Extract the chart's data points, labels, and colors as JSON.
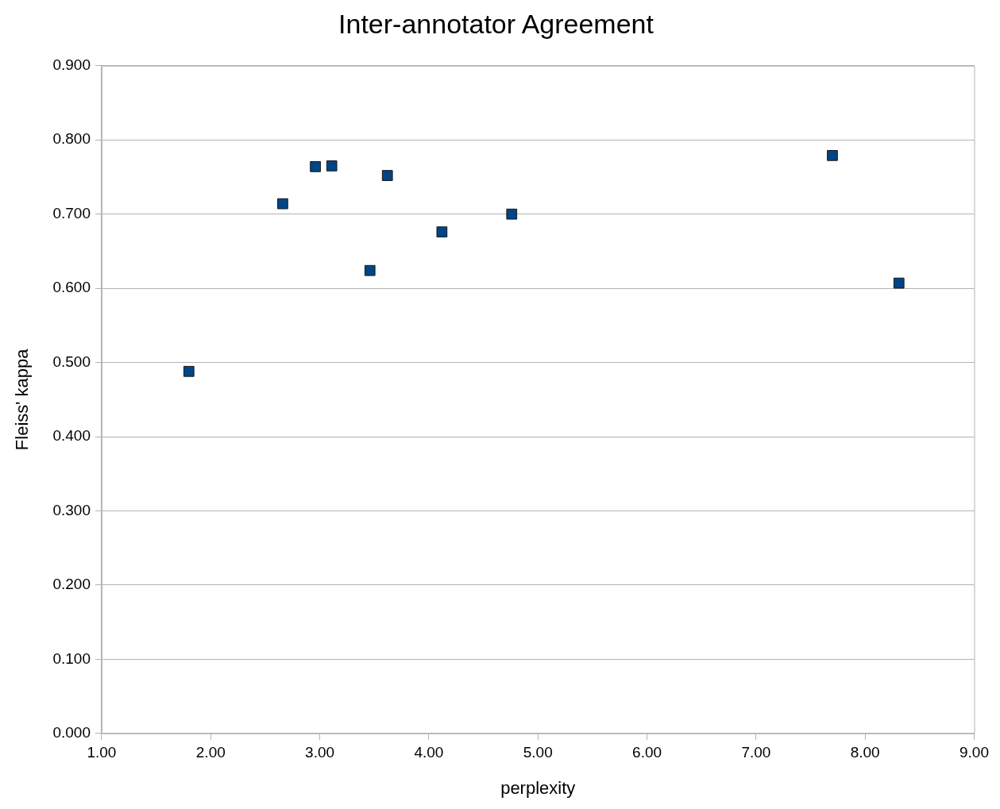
{
  "chart_data": {
    "type": "scatter",
    "title": "Inter-annotator Agreement",
    "xlabel": "perplexity",
    "ylabel": "Fleiss' kappa",
    "x": [
      1.8,
      2.66,
      2.96,
      3.11,
      3.46,
      3.62,
      4.12,
      4.76,
      7.7,
      8.31
    ],
    "series": [
      {
        "color": "#004586",
        "values": [
          0.488,
          0.714,
          0.764,
          0.765,
          0.624,
          0.752,
          0.676,
          0.7,
          0.779,
          0.607
        ]
      }
    ],
    "xlim": [
      1,
      9
    ],
    "xticks": [
      {
        "value": 1,
        "label": "1.00"
      },
      {
        "value": 2,
        "label": "2.00"
      },
      {
        "value": 3,
        "label": "3.00"
      },
      {
        "value": 4,
        "label": "4.00"
      },
      {
        "value": 5,
        "label": "5.00"
      },
      {
        "value": 6,
        "label": "6.00"
      },
      {
        "value": 7,
        "label": "7.00"
      },
      {
        "value": 8,
        "label": "8.00"
      },
      {
        "value": 9,
        "label": "9.00"
      }
    ],
    "ylim": [
      0,
      0.9
    ],
    "yticks": [
      {
        "value": 0,
        "label": "0.000"
      },
      {
        "value": 0.1,
        "label": "0.100"
      },
      {
        "value": 0.2,
        "label": "0.200"
      },
      {
        "value": 0.3,
        "label": "0.300"
      },
      {
        "value": 0.4,
        "label": "0.400"
      },
      {
        "value": 0.5,
        "label": "0.500"
      },
      {
        "value": 0.6,
        "label": "0.600"
      },
      {
        "value": 0.7,
        "label": "0.700"
      },
      {
        "value": 0.8,
        "label": "0.800"
      },
      {
        "value": 0.9,
        "label": "0.900"
      }
    ],
    "grid": "y",
    "legend": false,
    "marker": "square"
  }
}
